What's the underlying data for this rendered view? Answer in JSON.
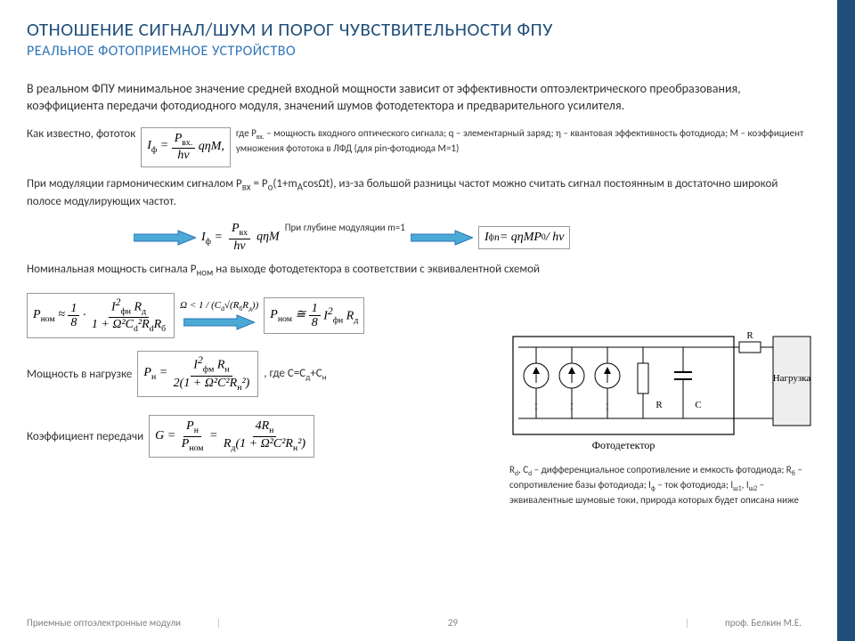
{
  "colors": {
    "accent": "#1f4e79",
    "subtitle": "#2e75b6",
    "arrow_fill": "#4ba9d6",
    "arrow_stroke": "#2e75b6",
    "text": "#333333",
    "footer": "#7f7f7f",
    "box_border": "#999999",
    "circuit_stroke": "#000000",
    "background": "#ffffff"
  },
  "typography": {
    "title_size": 21,
    "subtitle_size": 16,
    "body_size": 14,
    "small_size": 11,
    "formula_family": "Times New Roman"
  },
  "title": "ОТНОШЕНИЕ СИГНАЛ/ШУМ И ПОРОГ ЧУВСТВИТЕЛЬНОСТИ ФПУ",
  "subtitle": "РЕАЛЬНОЕ ФОТОПРИЕМНОЕ УСТРОЙСТВО",
  "intro": "В реальном ФПУ минимальное значение средней входной мощности зависит от эффективности оптоэлектрического преобразования, коэффициента передачи фотодиодного модуля, значений шумов фотодетектора и предварительного усилителя.",
  "phototok_label": "Как известно, фототок",
  "phototok_formula": {
    "lhs": "I<sub>ф</sub> =",
    "num": "P<sub>вх.</sub>",
    "den": "hν",
    "rhs": "qηM,"
  },
  "phototok_note": "где P<sub>вх.</sub> – мощность входного оптического сигнала; q – элементарный заряд; η – квантовая эффективность фотодиода; M – коэффициент умножения фототока в ЛФД (для pin-фотодиода M=1)",
  "modulation_text": "При модуляции гармоническим сигналом P<sub>вх</sub> = P<sub>о</sub>(1+m<sub>A</sub>cosΩt), из-за большой разницы частот можно считать сигнал постоянным в достаточно широкой полосе модулирующих частот.",
  "depth_note": "При глубине модуляции m≈1",
  "i_phi_formula": {
    "lhs": "I<sub>ф</sub> =",
    "num": "P<sub>вх</sub>",
    "den": "hν",
    "rhs": "qηM"
  },
  "i_phi_n_formula": "I<sub>ф</sub><sup>n</sup> = qηMP<sub>0</sub> / hν",
  "nominal_text": "Номинальная мощность сигнала P<sub>ном</sub> на выходе фотодетектора в соответствии с эквивалентной схемой",
  "p_nom_formula": {
    "lhs": "P<sub>ном</sub> ≈",
    "f1": "1",
    "f1d": "8",
    "num": "I<sup>2</sup><sub>фн</sub> R<sub>д</sub>",
    "den": "1 + Ω²C<sub>d</sub>²R<sub>d</sub>R<sub>б</sub>"
  },
  "omega_cond": "Ω < 1 / (C<sub>d</sub>√(R<sub>б</sub>R<sub>д</sub>))",
  "p_nom_simplified": {
    "lhs": "P<sub>ном</sub> ≅",
    "f1": "1",
    "f1d": "8",
    "rhs": "I<sup>2</sup><sub>фн</sub> R<sub>д</sub>"
  },
  "load_label": "Мощность в нагрузке",
  "p_load_formula": {
    "lhs": "P<sub>н</sub> =",
    "num": "I<sup>2</sup><sub>фм</sub> R<sub>н</sub>",
    "den": "2(1 + Ω²C²R<sub>н</sub>²)"
  },
  "load_note": ", где C=C<sub>д</sub>+C<sub>н</sub>",
  "transfer_label": "Коэффициент передачи",
  "transfer_formula": {
    "lhs": "G =",
    "f1n": "P<sub>н</sub>",
    "f1d": "P<sub>ном</sub>",
    "eq": "=",
    "f2n": "4R<sub>н</sub>",
    "f2d": "R<sub>д</sub>(1 + Ω²C²R<sub>н</sub>²)"
  },
  "circuit": {
    "sources": [
      "I<sub>ф</sub>",
      "I<sub>ш1</sub>",
      "I<sub>ш2</sub>"
    ],
    "rd_label": "R<sub>д</sub>",
    "cd_label": "C<sub>д</sub>",
    "rb_label": "R<sub>б</sub>",
    "load_label": "Нагрузка",
    "caption": "Фотодетектор"
  },
  "circuit_note": "R<sub>d</sub>, C<sub>d</sub> – дифференциальное сопротивление и емкость фотодиода; R<sub>б</sub> – сопротивление базы фотодиода; I<sub>ф</sub> – ток фотодиода; I<sub>ш1</sub>, I<sub>ш2</sub> – эквивалентные шумовые токи, природа которых будет описана ниже",
  "footer": {
    "left": "Приемные оптоэлектронные модули",
    "page": "29",
    "right": "проф. Белкин М.Е."
  }
}
